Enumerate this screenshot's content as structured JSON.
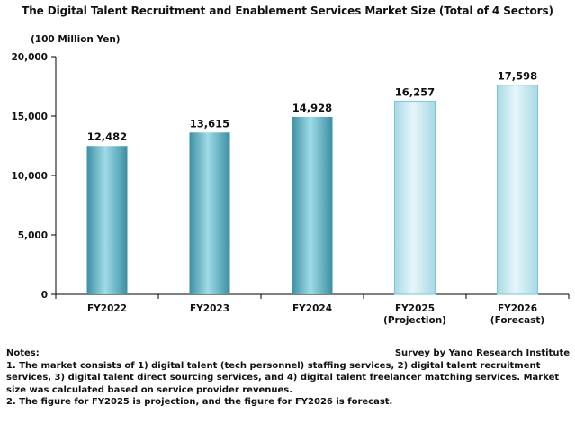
{
  "chart_data": {
    "type": "bar",
    "title": "The Digital Talent Recruitment and Enablement Services Market Size (Total of 4 Sectors)",
    "ylabel": "(100 Million Yen)",
    "ylim": [
      0,
      20000
    ],
    "yticks": [
      "0",
      "5,000",
      "10,000",
      "15,000",
      "20,000"
    ],
    "ytick_values": [
      0,
      5000,
      10000,
      15000,
      20000
    ],
    "categories": [
      [
        "FY2022"
      ],
      [
        "FY2023"
      ],
      [
        "FY2024"
      ],
      [
        "FY2025",
        "(Projection)"
      ],
      [
        "FY2026",
        "(Forecast)"
      ]
    ],
    "values": [
      12482,
      13615,
      14928,
      16257,
      17598
    ],
    "value_labels": [
      "12,482",
      "13,615",
      "14,928",
      "16,257",
      "17,598"
    ],
    "bar_styles": [
      "actual",
      "actual",
      "actual",
      "estimate",
      "estimate"
    ],
    "colors": {
      "actual_dark": "#3c8fa4",
      "actual_light": "#9fdbe6",
      "estimate_dark": "#a8d9e6",
      "estimate_light": "#e6f6fa",
      "estimate_border": "#7cc4d6",
      "axis": "#000000"
    },
    "grid": false,
    "legend": "none"
  },
  "notes": {
    "heading": "Notes:",
    "source": "Survey by Yano Research Institute",
    "items": [
      "1. The market consists of 1) digital talent (tech personnel) staffing services, 2) digital talent recruitment services, 3) digital talent direct sourcing services, and 4) digital talent freelancer matching services. Market size was calculated based on service provider revenues.",
      "2. The figure for FY2025 is projection, and the figure for FY2026 is forecast."
    ]
  }
}
